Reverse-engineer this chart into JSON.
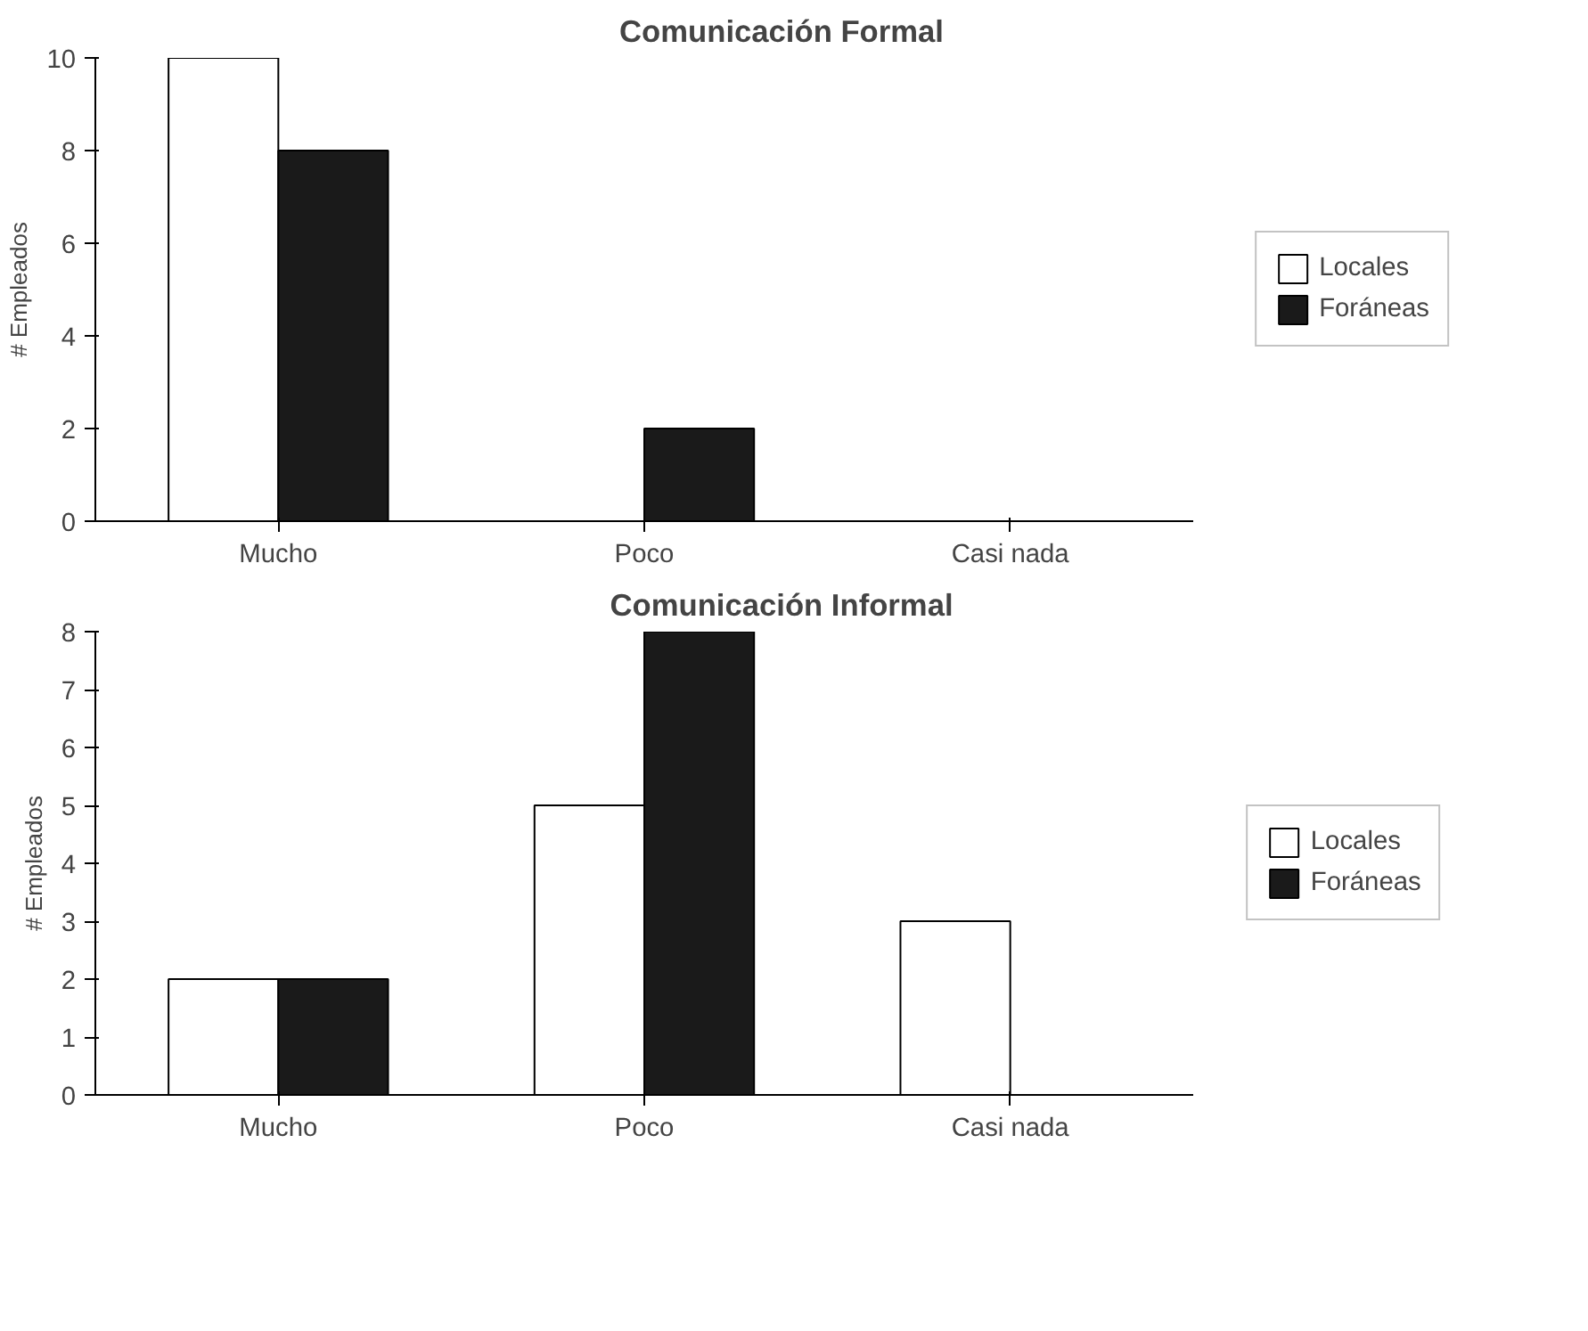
{
  "chart_data": [
    {
      "type": "bar",
      "title": "Comunicación Formal",
      "ylabel": "# Empleados",
      "categories": [
        "Mucho",
        "Poco",
        "Casi nada"
      ],
      "series": [
        {
          "name": "Locales",
          "color": "#ffffff",
          "values": [
            10,
            0,
            0
          ]
        },
        {
          "name": "Foráneas",
          "color": "#1a1a1a",
          "values": [
            8,
            2,
            0
          ]
        }
      ],
      "ylim": [
        0,
        10
      ],
      "yticks": [
        0,
        2,
        4,
        6,
        8,
        10
      ],
      "grid": false,
      "legend": "right"
    },
    {
      "type": "bar",
      "title": "Comunicación Informal",
      "ylabel": "# Empleados",
      "categories": [
        "Mucho",
        "Poco",
        "Casi nada"
      ],
      "series": [
        {
          "name": "Locales",
          "color": "#ffffff",
          "values": [
            2,
            5,
            3
          ]
        },
        {
          "name": "Foráneas",
          "color": "#1a1a1a",
          "values": [
            2,
            8,
            0
          ]
        }
      ],
      "ylim": [
        0,
        8
      ],
      "yticks": [
        0,
        1,
        2,
        3,
        4,
        5,
        6,
        7,
        8
      ],
      "grid": false,
      "legend": "right"
    }
  ]
}
